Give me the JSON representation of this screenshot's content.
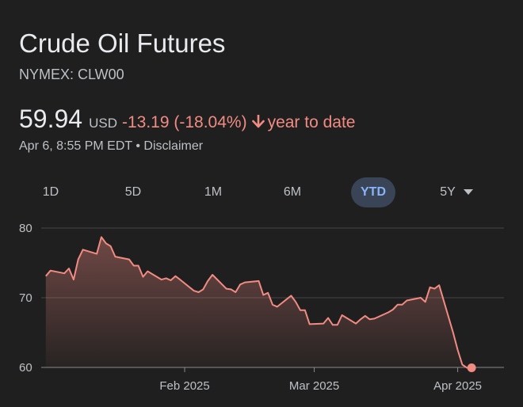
{
  "header": {
    "title": "Crude Oil Futures",
    "ticker": "NYMEX: CLW00"
  },
  "quote": {
    "price": "59.94",
    "currency": "USD",
    "change": "-13.19 (-18.04%)",
    "direction": "down",
    "period": "year to date"
  },
  "meta": {
    "timestamp": "Apr 6, 8:55 PM EDT",
    "separator": "•",
    "disclaimer": "Disclaimer"
  },
  "tabs": [
    {
      "label": "1D",
      "active": false
    },
    {
      "label": "5D",
      "active": false
    },
    {
      "label": "1M",
      "active": false
    },
    {
      "label": "6M",
      "active": false
    },
    {
      "label": "YTD",
      "active": true
    },
    {
      "label": "5Y",
      "active": false,
      "dropdown": true
    }
  ],
  "colors": {
    "line": "#f28b82",
    "accent": "#8ab4f8",
    "background": "#1f1f1f"
  },
  "chart_data": {
    "type": "area",
    "title": "",
    "xlabel": "",
    "ylabel": "",
    "ylim": [
      60,
      80
    ],
    "yticks": [
      60,
      70,
      80
    ],
    "x_ticks": [
      {
        "label": "Feb 2025",
        "date": "2025-02-01"
      },
      {
        "label": "Mar 2025",
        "date": "2025-03-01"
      },
      {
        "label": "Apr 2025",
        "date": "2025-04-01"
      }
    ],
    "grid": true,
    "legend": "none",
    "series": [
      {
        "x": [
          "2025-01-02",
          "2025-01-03",
          "2025-01-06",
          "2025-01-07",
          "2025-01-08",
          "2025-01-09",
          "2025-01-10",
          "2025-01-13",
          "2025-01-14",
          "2025-01-15",
          "2025-01-16",
          "2025-01-17",
          "2025-01-20",
          "2025-01-21",
          "2025-01-22",
          "2025-01-23",
          "2025-01-24",
          "2025-01-27",
          "2025-01-28",
          "2025-01-29",
          "2025-01-30",
          "2025-01-31",
          "2025-02-03",
          "2025-02-04",
          "2025-02-05",
          "2025-02-06",
          "2025-02-07",
          "2025-02-10",
          "2025-02-11",
          "2025-02-12",
          "2025-02-13",
          "2025-02-14",
          "2025-02-17",
          "2025-02-18",
          "2025-02-19",
          "2025-02-20",
          "2025-02-21",
          "2025-02-24",
          "2025-02-25",
          "2025-02-26",
          "2025-02-27",
          "2025-02-28",
          "2025-03-03",
          "2025-03-04",
          "2025-03-05",
          "2025-03-06",
          "2025-03-07",
          "2025-03-10",
          "2025-03-11",
          "2025-03-12",
          "2025-03-13",
          "2025-03-14",
          "2025-03-17",
          "2025-03-18",
          "2025-03-19",
          "2025-03-20",
          "2025-03-21",
          "2025-03-24",
          "2025-03-25",
          "2025-03-26",
          "2025-03-27",
          "2025-03-28",
          "2025-03-31",
          "2025-04-01",
          "2025-04-02",
          "2025-04-03",
          "2025-04-04"
        ],
        "values": [
          73.1,
          73.9,
          73.5,
          74.2,
          72.6,
          75.5,
          76.9,
          76.3,
          78.7,
          77.8,
          77.4,
          75.9,
          75.5,
          74.6,
          74.6,
          73.0,
          73.8,
          72.6,
          72.8,
          72.5,
          73.1,
          72.6,
          71.0,
          70.8,
          71.2,
          72.4,
          73.3,
          71.3,
          71.2,
          70.8,
          71.9,
          72.2,
          72.4,
          70.4,
          70.7,
          69.0,
          68.7,
          70.3,
          69.4,
          68.2,
          68.2,
          66.2,
          66.3,
          67.1,
          66.1,
          66.1,
          67.5,
          66.3,
          66.9,
          67.4,
          66.9,
          67.0,
          67.9,
          68.3,
          69.0,
          69.0,
          69.6,
          70.0,
          69.4,
          71.5,
          71.3,
          71.8,
          65.0,
          62.5,
          60.4,
          59.94,
          59.94
        ]
      }
    ]
  }
}
